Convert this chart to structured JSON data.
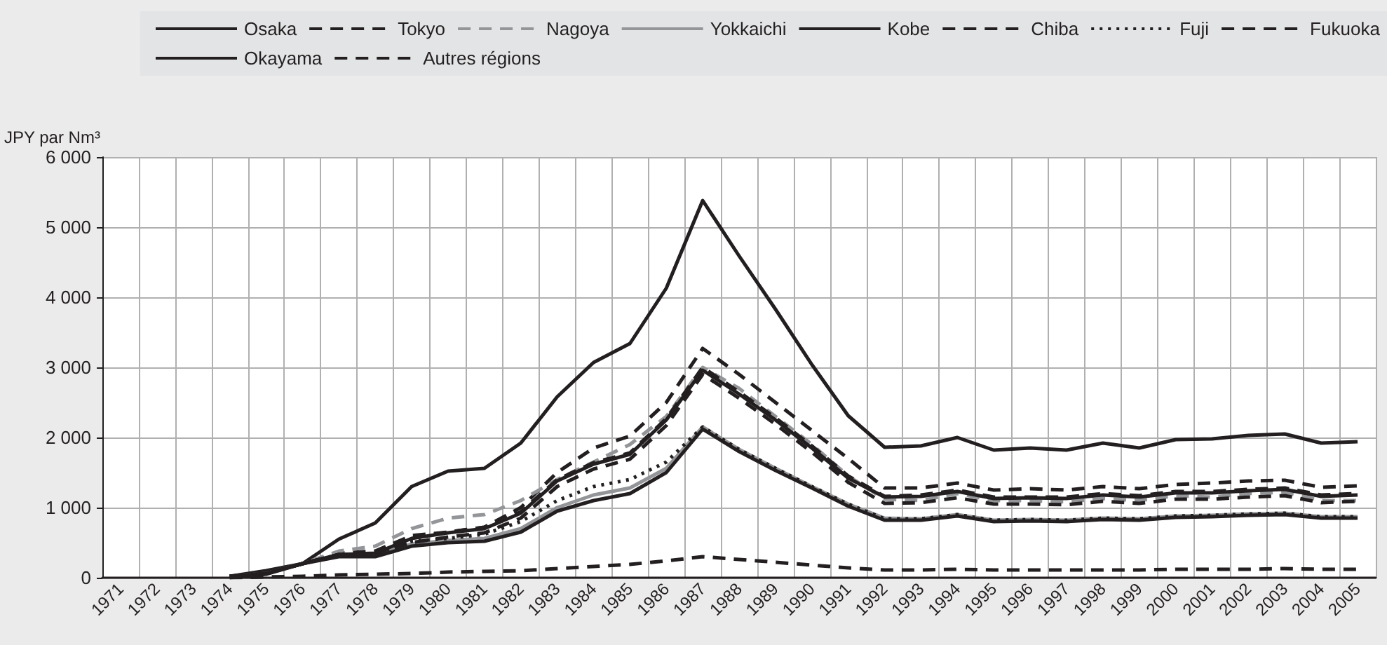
{
  "chart_data": {
    "type": "line",
    "ylabel": "JPY par Nm³",
    "categories": [
      "1971",
      "1972",
      "1973",
      "1974",
      "1975",
      "1976",
      "1977",
      "1978",
      "1979",
      "1980",
      "1981",
      "1982",
      "1983",
      "1984",
      "1985",
      "1986",
      "1987",
      "1988",
      "1989",
      "1990",
      "1991",
      "1992",
      "1993",
      "1994",
      "1995",
      "1996",
      "1997",
      "1998",
      "1999",
      "2000",
      "2001",
      "2002",
      "2003",
      "2004",
      "2005"
    ],
    "series": [
      {
        "name": "Osaka",
        "color": "#231f20",
        "line_style": "solid",
        "values": [
          null,
          null,
          null,
          20,
          100,
          200,
          550,
          780,
          1300,
          1520,
          1560,
          1920,
          2580,
          3070,
          3340,
          4130,
          5380,
          4590,
          3830,
          3040,
          2310,
          1860,
          1880,
          2000,
          1820,
          1850,
          1820,
          1920,
          1850,
          1970,
          1980,
          2030,
          2050,
          1920,
          1940
        ]
      },
      {
        "name": "Tokyo",
        "color": "#231f20",
        "line_style": "dashed",
        "values": [
          null,
          null,
          null,
          20,
          60,
          200,
          350,
          380,
          600,
          650,
          720,
          1000,
          1500,
          1850,
          2020,
          2500,
          3270,
          2900,
          2500,
          2100,
          1700,
          1280,
          1280,
          1350,
          1250,
          1270,
          1250,
          1300,
          1270,
          1330,
          1350,
          1380,
          1390,
          1290,
          1310
        ]
      },
      {
        "name": "Nagoya",
        "color": "#939598",
        "line_style": "dashed",
        "values": [
          null,
          null,
          null,
          20,
          60,
          200,
          380,
          450,
          700,
          850,
          900,
          1100,
          1400,
          1650,
          1900,
          2300,
          3000,
          2700,
          2300,
          1900,
          1450,
          1120,
          1100,
          1200,
          1100,
          1100,
          1080,
          1130,
          1100,
          1170,
          1150,
          1200,
          1220,
          1100,
          1100
        ]
      },
      {
        "name": "Yokkaichi",
        "color": "#939598",
        "line_style": "solid",
        "values": [
          null,
          null,
          null,
          20,
          60,
          200,
          320,
          330,
          480,
          530,
          560,
          700,
          1000,
          1180,
          1280,
          1560,
          2150,
          1830,
          1560,
          1300,
          1050,
          850,
          840,
          900,
          820,
          830,
          820,
          850,
          840,
          880,
          890,
          910,
          920,
          870,
          870
        ]
      },
      {
        "name": "Kobe",
        "color": "#231f20",
        "line_style": "solid",
        "values": [
          null,
          null,
          null,
          20,
          60,
          200,
          330,
          350,
          560,
          640,
          700,
          920,
          1380,
          1620,
          1760,
          2250,
          2960,
          2620,
          2250,
          1850,
          1420,
          1150,
          1160,
          1230,
          1130,
          1140,
          1130,
          1180,
          1150,
          1210,
          1210,
          1240,
          1260,
          1160,
          1180
        ]
      },
      {
        "name": "Chiba",
        "color": "#231f20",
        "line_style": "dashed",
        "values": [
          null,
          null,
          null,
          20,
          60,
          200,
          330,
          340,
          570,
          650,
          720,
          940,
          1400,
          1640,
          1780,
          2270,
          3000,
          2650,
          2280,
          1880,
          1450,
          1160,
          1180,
          1250,
          1150,
          1150,
          1150,
          1200,
          1170,
          1230,
          1230,
          1260,
          1280,
          1180,
          1200
        ]
      },
      {
        "name": "Fuji",
        "color": "#231f20",
        "line_style": "dotted",
        "values": [
          null,
          null,
          null,
          20,
          60,
          200,
          330,
          340,
          520,
          560,
          620,
          800,
          1100,
          1300,
          1400,
          1650,
          2150,
          1830,
          1560,
          1300,
          1050,
          840,
          840,
          900,
          820,
          830,
          820,
          850,
          840,
          880,
          890,
          910,
          920,
          870,
          870
        ]
      },
      {
        "name": "Fukuoka",
        "color": "#231f20",
        "line_style": "dashed",
        "values": [
          null,
          null,
          null,
          20,
          60,
          200,
          330,
          350,
          500,
          580,
          640,
          850,
          1300,
          1550,
          1690,
          2170,
          2900,
          2560,
          2190,
          1790,
          1360,
          1060,
          1070,
          1140,
          1050,
          1050,
          1040,
          1090,
          1060,
          1120,
          1120,
          1150,
          1170,
          1070,
          1090
        ]
      },
      {
        "name": "Okayama",
        "color": "#231f20",
        "line_style": "solid",
        "values": [
          null,
          null,
          null,
          0,
          50,
          200,
          300,
          300,
          450,
          500,
          520,
          650,
          950,
          1100,
          1200,
          1500,
          2120,
          1800,
          1530,
          1280,
          1020,
          820,
          820,
          880,
          800,
          810,
          800,
          830,
          820,
          860,
          870,
          890,
          900,
          850,
          850
        ]
      },
      {
        "name": "Autres régions",
        "color": "#231f20",
        "line_style": "dashed",
        "values": [
          null,
          null,
          null,
          0,
          10,
          20,
          40,
          50,
          60,
          80,
          90,
          100,
          130,
          160,
          190,
          240,
          300,
          260,
          220,
          180,
          140,
          110,
          110,
          120,
          110,
          110,
          110,
          110,
          110,
          120,
          120,
          120,
          130,
          120,
          120
        ]
      }
    ],
    "ylim": [
      0,
      6000
    ],
    "yticks": [
      0,
      {
        "value": 1000,
        "label": "1 000"
      },
      {
        "value": 2000,
        "label": "2 000"
      },
      {
        "value": 3000,
        "label": "3 000"
      },
      {
        "value": 4000,
        "label": "4 000"
      },
      {
        "value": 5000,
        "label": "5 000"
      },
      {
        "value": 6000,
        "label": "6 000"
      }
    ],
    "grid": true,
    "legend": "top",
    "marker": "none"
  }
}
